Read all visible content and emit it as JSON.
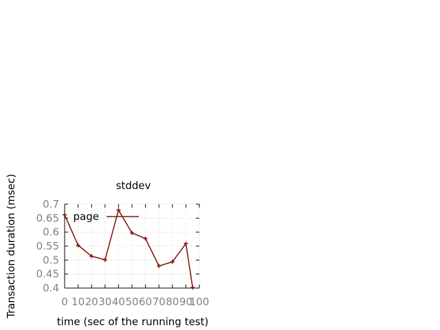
{
  "chart_data": {
    "type": "line",
    "title": "stddev",
    "xlabel": "time (sec of the running test)",
    "ylabel": "Transaction duration (msec)",
    "xlim": [
      0,
      100
    ],
    "ylim": [
      0.4,
      0.7
    ],
    "xticks": [
      0,
      10,
      20,
      30,
      40,
      50,
      60,
      70,
      80,
      90,
      100
    ],
    "xtick_labels": [
      "0",
      "10",
      "20",
      "30",
      "40",
      "50",
      "60",
      "70",
      "80",
      "90",
      "100"
    ],
    "yticks": [
      0.4,
      0.45,
      0.5,
      0.55,
      0.6,
      0.65,
      0.7
    ],
    "ytick_labels": [
      "0.4",
      "0.45",
      "0.5",
      "0.55",
      "0.6",
      "0.65",
      "0.7"
    ],
    "grid": true,
    "legend_position": "top-left",
    "series": [
      {
        "name": "page",
        "color": "#7f1a0f",
        "marker": "plus",
        "x": [
          0,
          10,
          20,
          30,
          40,
          50,
          60,
          70,
          80,
          90,
          95
        ],
        "y": [
          0.662,
          0.553,
          0.514,
          0.501,
          0.679,
          0.597,
          0.577,
          0.479,
          0.494,
          0.559,
          0.402
        ]
      }
    ]
  }
}
